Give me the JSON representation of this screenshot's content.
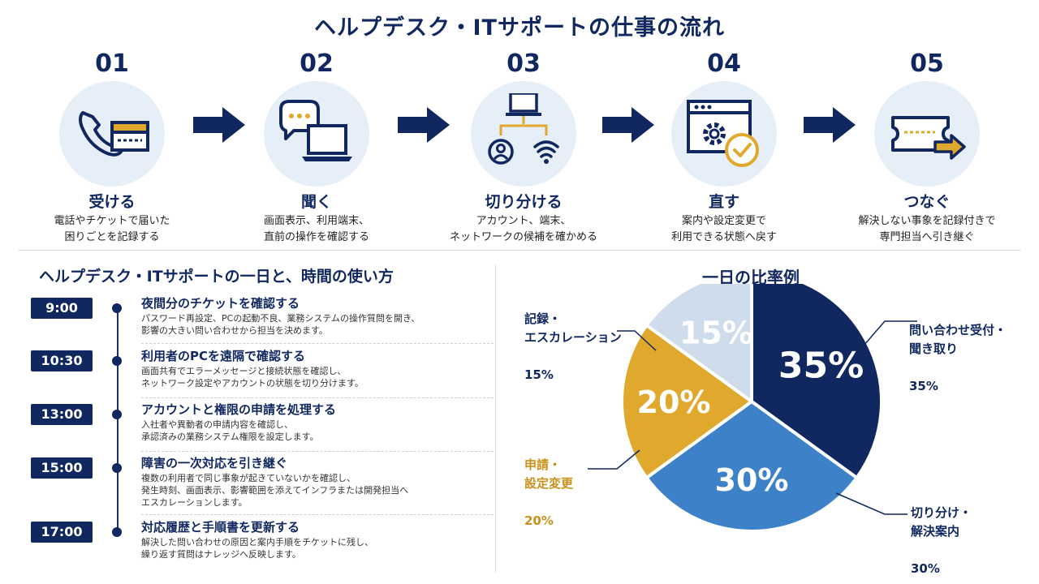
{
  "title": "ヘルプデスク・ITサポートの仕事の流れ",
  "steps": [
    {
      "num": "01",
      "title": "受ける",
      "desc": "電話やチケットで届いた\n困りごとを記録する",
      "icon": "phone-ticket-icon"
    },
    {
      "num": "02",
      "title": "聞く",
      "desc": "画面表示、利用端末、\n直前の操作を確認する",
      "icon": "chat-laptop-icon"
    },
    {
      "num": "03",
      "title": "切り分ける",
      "desc": "アカウント、端末、\nネットワークの候補を確かめる",
      "icon": "network-branch-icon"
    },
    {
      "num": "04",
      "title": "直す",
      "desc": "案内や設定変更で\n利用できる状態へ戻す",
      "icon": "gear-check-icon"
    },
    {
      "num": "05",
      "title": "つなぐ",
      "desc": "解決しない事象を記録付きで\n専門担当へ引き継ぐ",
      "icon": "ticket-forward-icon"
    }
  ],
  "schedule": {
    "title": "ヘルプデスク・ITサポートの一日と、時間の使い方",
    "items": [
      {
        "time": "9:00",
        "title": "夜間分のチケットを確認する",
        "desc": "パスワード再設定、PCの起動不良、業務システムの操作質問を開き、\n影響の大きい問い合わせから担当を決めます。"
      },
      {
        "time": "10:30",
        "title": "利用者のPCを遠隔で確認する",
        "desc": "画面共有でエラーメッセージと接続状態を確認し、\nネットワーク設定やアカウントの状態を切り分けます。"
      },
      {
        "time": "13:00",
        "title": "アカウントと権限の申請を処理する",
        "desc": "入社者や異動者の申請内容を確認し、\n承認済みの業務システム権限を設定します。"
      },
      {
        "time": "15:00",
        "title": "障害の一次対応を引き継ぐ",
        "desc": "複数の利用者で同じ事象が起きていないかを確認し、\n発生時刻、画面表示、影響範囲を添えてインフラまたは開発担当へ\nエスカレーションします。"
      },
      {
        "time": "17:00",
        "title": "対応履歴と手順書を更新する",
        "desc": "解決した問い合わせの原因と案内手順をチケットに残し、\n繰り返す質問はナレッジへ反映します。"
      }
    ]
  },
  "chart_data": {
    "type": "pie",
    "title": "一日の比率例",
    "slices": [
      {
        "label": "問い合わせ受付・\n聞き取り",
        "value": 35,
        "text": "35%",
        "color": "#10275f",
        "label_color": "#10275f"
      },
      {
        "label": "切り分け・\n解決案内",
        "value": 30,
        "text": "30%",
        "color": "#3d82c9",
        "label_color": "#10275f"
      },
      {
        "label": "申請・\n設定変更",
        "value": 20,
        "text": "20%",
        "color": "#e0a82c",
        "label_color": "#c9911a"
      },
      {
        "label": "記録・\nエスカレーション",
        "value": 15,
        "text": "15%",
        "color": "#cfdcec",
        "label_color": "#10275f"
      }
    ]
  }
}
